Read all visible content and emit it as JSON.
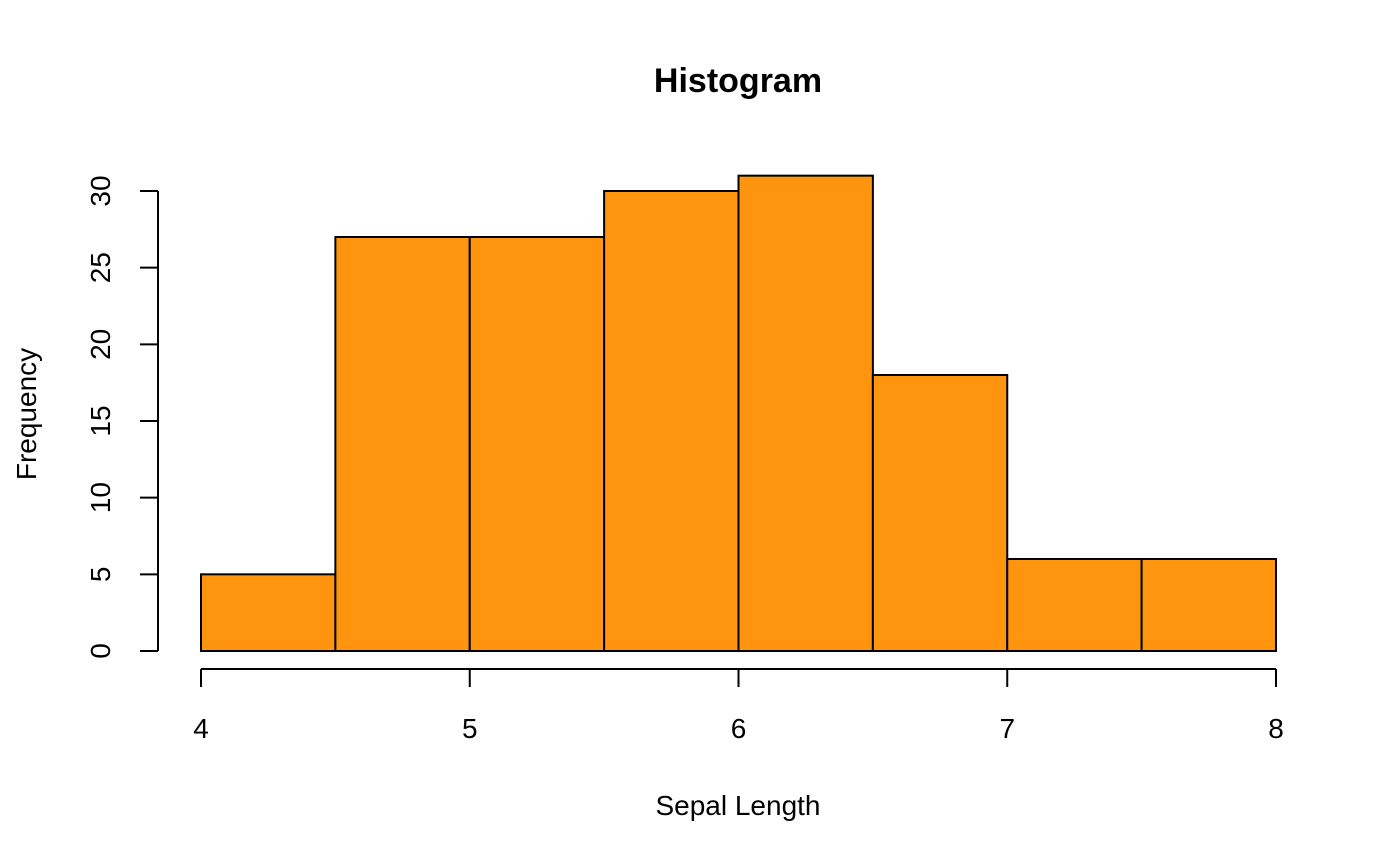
{
  "chart_data": {
    "type": "bar",
    "title": "Histogram",
    "xlabel": "Sepal Length",
    "ylabel": "Frequency",
    "bins": [
      {
        "start": 4.0,
        "end": 4.5,
        "count": 5
      },
      {
        "start": 4.5,
        "end": 5.0,
        "count": 27
      },
      {
        "start": 5.0,
        "end": 5.5,
        "count": 27
      },
      {
        "start": 5.5,
        "end": 6.0,
        "count": 30
      },
      {
        "start": 6.0,
        "end": 6.5,
        "count": 31
      },
      {
        "start": 6.5,
        "end": 7.0,
        "count": 18
      },
      {
        "start": 7.0,
        "end": 7.5,
        "count": 6
      },
      {
        "start": 7.5,
        "end": 8.0,
        "count": 6
      }
    ],
    "x_ticks": [
      4,
      5,
      6,
      7,
      8
    ],
    "y_ticks": [
      0,
      5,
      10,
      15,
      20,
      25,
      30
    ],
    "xlim": [
      4,
      8
    ],
    "ylim": [
      0,
      30
    ],
    "grid": false,
    "bar_color": "#FF950E",
    "edge_color": "#000000"
  }
}
